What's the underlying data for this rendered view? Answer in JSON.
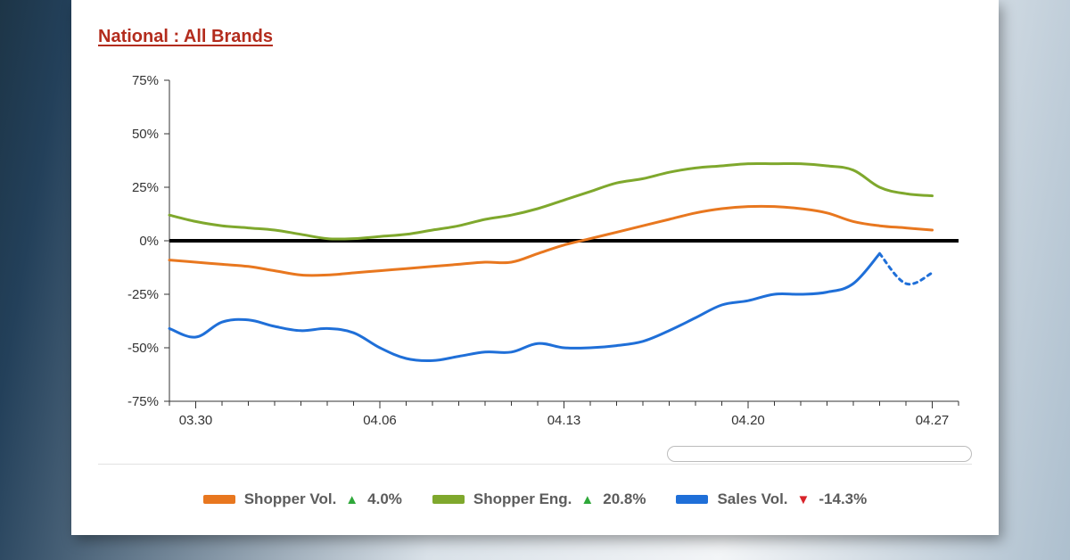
{
  "card": {
    "background_color": "#ffffff",
    "title": "National : All Brands",
    "title_color": "#b32c1d",
    "title_fontsize": 20
  },
  "chart": {
    "type": "line",
    "x_unit": "days_from_start",
    "xlim": [
      0,
      30
    ],
    "ylim": [
      -75,
      75
    ],
    "ytick_step": 25,
    "ytick_suffix": "%",
    "x_ticks": [
      {
        "x": 1,
        "label": "03.30"
      },
      {
        "x": 8,
        "label": "04.06"
      },
      {
        "x": 15,
        "label": "04.13"
      },
      {
        "x": 22,
        "label": "04.20"
      },
      {
        "x": 29,
        "label": "04.27"
      }
    ],
    "minor_tick_every_x": 1,
    "axis_color": "#333333",
    "zero_line_color": "#000000",
    "zero_line_width": 4,
    "label_fontsize": 15,
    "line_width": 3,
    "series": [
      {
        "id": "shopper_vol",
        "label": "Shopper Vol.",
        "change_pct": "4.0%",
        "change_dir": "up",
        "color": "#e8771f",
        "values": [
          -9,
          -10,
          -11,
          -12,
          -14,
          -16,
          -16,
          -15,
          -14,
          -13,
          -12,
          -11,
          -10,
          -10,
          -6,
          -2,
          1,
          4,
          7,
          10,
          13,
          15,
          16,
          16,
          15,
          13,
          9,
          7,
          6,
          5
        ]
      },
      {
        "id": "shopper_eng",
        "label": "Shopper Eng.",
        "change_pct": "20.8%",
        "change_dir": "up",
        "color": "#7fa82d",
        "values": [
          12,
          9,
          7,
          6,
          5,
          3,
          1,
          1,
          2,
          3,
          5,
          7,
          10,
          12,
          15,
          19,
          23,
          27,
          29,
          32,
          34,
          35,
          36,
          36,
          36,
          35,
          33,
          25,
          22,
          21
        ]
      },
      {
        "id": "sales_vol",
        "label": "Sales Vol.",
        "change_pct": "-14.3%",
        "change_dir": "down",
        "color": "#1f6fd8",
        "dashed_tail_points": 2,
        "values": [
          -41,
          -45,
          -38,
          -37,
          -40,
          -42,
          -41,
          -43,
          -50,
          -55,
          -56,
          -54,
          -52,
          -52,
          -48,
          -50,
          -50,
          -49,
          -47,
          -42,
          -36,
          -30,
          -28,
          -25,
          -25,
          -24,
          -20,
          -6,
          -20,
          -15
        ]
      }
    ]
  },
  "legend": {
    "label_color": "#5c5c5c",
    "up_color": "#2fa83a",
    "down_color": "#d8232a",
    "swatch_width": 36,
    "swatch_height": 10,
    "fontsize": 17
  }
}
